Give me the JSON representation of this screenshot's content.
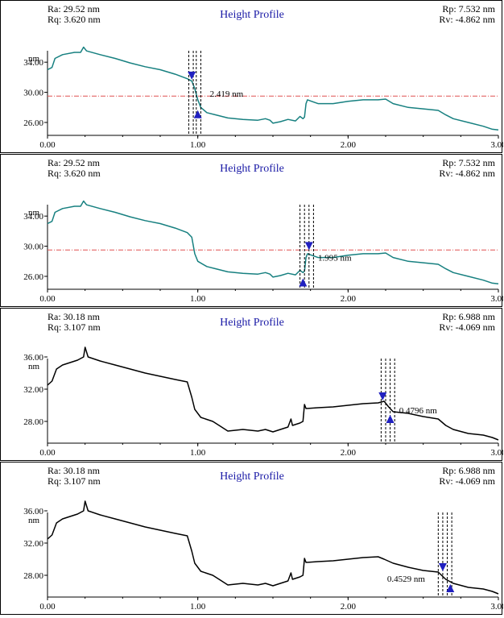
{
  "unit_label": "nm",
  "colors": {
    "teal": "#178080",
    "black": "#000000",
    "ref": "#e05050",
    "marker": "#2020c0",
    "title": "#1a1aa6"
  },
  "chart_data": [
    {
      "type": "line",
      "title": "Height Profile",
      "ylabel": "nm",
      "stats": {
        "ra": "Ra: 29.52 nm",
        "rq": "Rq: 3.620 nm",
        "rp": "Rp: 7.532 nm",
        "rv": "Rv: -4.862 nm"
      },
      "line_color": "teal",
      "xlim": [
        0,
        3
      ],
      "ylim": [
        24.5,
        36.8
      ],
      "x_ticks": [
        "0.00",
        "1.00",
        "2.00",
        "3.00"
      ],
      "y_ticks": [
        "26.00",
        "30.00",
        "34.00"
      ],
      "ref_y": 29.5,
      "cursors": [
        0.94,
        0.97,
        0.99,
        1.02
      ],
      "marker_down": [
        0.96,
        31.9
      ],
      "marker_up": [
        1.0,
        27.2
      ],
      "measurement": {
        "text": "2.419 nm",
        "x": 1.08,
        "y": 29.4
      },
      "profile": [
        [
          0,
          33
        ],
        [
          0.03,
          33.3
        ],
        [
          0.05,
          34.5
        ],
        [
          0.1,
          35
        ],
        [
          0.18,
          35.3
        ],
        [
          0.22,
          35.3
        ],
        [
          0.24,
          36
        ],
        [
          0.26,
          35.5
        ],
        [
          0.35,
          35
        ],
        [
          0.45,
          34.5
        ],
        [
          0.55,
          33.9
        ],
        [
          0.65,
          33.4
        ],
        [
          0.75,
          33
        ],
        [
          0.85,
          32.4
        ],
        [
          0.93,
          31.8
        ],
        [
          0.96,
          31.5
        ],
        [
          0.98,
          30.5
        ],
        [
          1.0,
          29
        ],
        [
          1.02,
          28
        ],
        [
          1.06,
          27.3
        ],
        [
          1.12,
          27
        ],
        [
          1.2,
          26.6
        ],
        [
          1.3,
          26.4
        ],
        [
          1.4,
          26.3
        ],
        [
          1.45,
          26.5
        ],
        [
          1.48,
          26.3
        ],
        [
          1.5,
          25.9
        ],
        [
          1.55,
          26.1
        ],
        [
          1.6,
          26.4
        ],
        [
          1.65,
          26.2
        ],
        [
          1.68,
          26.8
        ],
        [
          1.7,
          26.5
        ],
        [
          1.71,
          26.7
        ],
        [
          1.72,
          28.5
        ],
        [
          1.73,
          29
        ],
        [
          1.8,
          28.5
        ],
        [
          1.9,
          28.5
        ],
        [
          2.0,
          28.8
        ],
        [
          2.1,
          29
        ],
        [
          2.2,
          29
        ],
        [
          2.25,
          29.1
        ],
        [
          2.3,
          28.5
        ],
        [
          2.4,
          28
        ],
        [
          2.5,
          27.8
        ],
        [
          2.6,
          27.6
        ],
        [
          2.65,
          27
        ],
        [
          2.7,
          26.5
        ],
        [
          2.8,
          26
        ],
        [
          2.9,
          25.5
        ],
        [
          2.96,
          25.1
        ],
        [
          3.0,
          25
        ]
      ]
    },
    {
      "type": "line",
      "title": "Height Profile",
      "ylabel": "nm",
      "stats": {
        "ra": "Ra: 29.52 nm",
        "rq": "Rq: 3.620 nm",
        "rp": "Rp: 7.532 nm",
        "rv": "Rv: -4.862 nm"
      },
      "line_color": "teal",
      "xlim": [
        0,
        3
      ],
      "ylim": [
        24.5,
        36.8
      ],
      "x_ticks": [
        "0.00",
        "1.00",
        "2.00",
        "3.00"
      ],
      "y_ticks": [
        "26.00",
        "30.00",
        "34.00"
      ],
      "ref_y": 29.5,
      "cursors": [
        1.68,
        1.71,
        1.74,
        1.77
      ],
      "marker_down": [
        1.74,
        29.7
      ],
      "marker_up": [
        1.7,
        25.3
      ],
      "measurement": {
        "text": "1.995 nm",
        "x": 1.8,
        "y": 28.1
      },
      "profile": [
        [
          0,
          33
        ],
        [
          0.03,
          33.3
        ],
        [
          0.05,
          34.5
        ],
        [
          0.1,
          35
        ],
        [
          0.18,
          35.3
        ],
        [
          0.22,
          35.3
        ],
        [
          0.24,
          36
        ],
        [
          0.26,
          35.5
        ],
        [
          0.35,
          35
        ],
        [
          0.45,
          34.5
        ],
        [
          0.55,
          33.9
        ],
        [
          0.65,
          33.4
        ],
        [
          0.75,
          33
        ],
        [
          0.85,
          32.4
        ],
        [
          0.93,
          31.8
        ],
        [
          0.96,
          31.2
        ],
        [
          0.98,
          29
        ],
        [
          1.0,
          28
        ],
        [
          1.06,
          27.3
        ],
        [
          1.12,
          27
        ],
        [
          1.2,
          26.6
        ],
        [
          1.3,
          26.4
        ],
        [
          1.4,
          26.3
        ],
        [
          1.45,
          26.5
        ],
        [
          1.48,
          26.3
        ],
        [
          1.5,
          25.9
        ],
        [
          1.55,
          26.1
        ],
        [
          1.6,
          26.4
        ],
        [
          1.65,
          26.2
        ],
        [
          1.68,
          26.8
        ],
        [
          1.7,
          26.5
        ],
        [
          1.71,
          26.7
        ],
        [
          1.72,
          28.5
        ],
        [
          1.73,
          29
        ],
        [
          1.8,
          28.5
        ],
        [
          1.9,
          28.5
        ],
        [
          2.0,
          28.8
        ],
        [
          2.1,
          29
        ],
        [
          2.2,
          29
        ],
        [
          2.25,
          29.1
        ],
        [
          2.3,
          28.5
        ],
        [
          2.4,
          28
        ],
        [
          2.5,
          27.8
        ],
        [
          2.6,
          27.6
        ],
        [
          2.65,
          27
        ],
        [
          2.7,
          26.5
        ],
        [
          2.8,
          26
        ],
        [
          2.9,
          25.5
        ],
        [
          2.96,
          25.1
        ],
        [
          3.0,
          25
        ]
      ]
    },
    {
      "type": "line",
      "title": "Height Profile",
      "ylabel": "nm",
      "stats": {
        "ra": "Ra: 30.18 nm",
        "rq": "Rq: 3.107 nm",
        "rp": "Rp: 6.988 nm",
        "rv": "Rv: -4.069 nm"
      },
      "line_color": "black",
      "xlim": [
        0,
        3
      ],
      "ylim": [
        25.5,
        37.0
      ],
      "x_ticks": [
        "0.00",
        "1.00",
        "2.00",
        "3.00"
      ],
      "y_ticks": [
        "28.00",
        "32.00",
        "36.00"
      ],
      "ref_y": null,
      "cursors": [
        2.22,
        2.25,
        2.28,
        2.31
      ],
      "marker_down": [
        2.23,
        30.8
      ],
      "marker_up": [
        2.28,
        28.4
      ],
      "measurement": {
        "text": "0.4796 nm",
        "x": 2.34,
        "y": 29.0
      },
      "profile": [
        [
          0,
          32.5
        ],
        [
          0.03,
          33
        ],
        [
          0.06,
          34.5
        ],
        [
          0.1,
          35
        ],
        [
          0.2,
          35.6
        ],
        [
          0.24,
          36
        ],
        [
          0.25,
          37.2
        ],
        [
          0.27,
          36
        ],
        [
          0.35,
          35.5
        ],
        [
          0.45,
          35
        ],
        [
          0.55,
          34.5
        ],
        [
          0.65,
          34
        ],
        [
          0.75,
          33.6
        ],
        [
          0.85,
          33.2
        ],
        [
          0.93,
          32.9
        ],
        [
          0.96,
          31
        ],
        [
          0.98,
          29.5
        ],
        [
          1.02,
          28.5
        ],
        [
          1.1,
          28
        ],
        [
          1.15,
          27.4
        ],
        [
          1.2,
          26.8
        ],
        [
          1.3,
          27
        ],
        [
          1.4,
          26.8
        ],
        [
          1.45,
          27
        ],
        [
          1.5,
          26.7
        ],
        [
          1.55,
          27
        ],
        [
          1.6,
          27.3
        ],
        [
          1.62,
          28.3
        ],
        [
          1.63,
          27.5
        ],
        [
          1.68,
          27.8
        ],
        [
          1.7,
          28
        ],
        [
          1.71,
          30.1
        ],
        [
          1.72,
          29.6
        ],
        [
          1.8,
          29.7
        ],
        [
          1.9,
          29.8
        ],
        [
          2.0,
          30
        ],
        [
          2.1,
          30.2
        ],
        [
          2.2,
          30.3
        ],
        [
          2.24,
          30.5
        ],
        [
          2.27,
          29.8
        ],
        [
          2.3,
          29.2
        ],
        [
          2.4,
          29
        ],
        [
          2.5,
          28.6
        ],
        [
          2.6,
          28.3
        ],
        [
          2.65,
          27.5
        ],
        [
          2.7,
          27
        ],
        [
          2.8,
          26.5
        ],
        [
          2.9,
          26.3
        ],
        [
          2.96,
          26
        ],
        [
          3.0,
          25.7
        ]
      ]
    },
    {
      "type": "line",
      "title": "Height Profile",
      "ylabel": "nm",
      "stats": {
        "ra": "Ra: 30.18 nm",
        "rq": "Rq: 3.107 nm",
        "rp": "Rp: 6.988 nm",
        "rv": "Rv: -4.069 nm"
      },
      "line_color": "black",
      "xlim": [
        0,
        3
      ],
      "ylim": [
        25.5,
        37.0
      ],
      "x_ticks": [
        "0.00",
        "1.00",
        "2.00",
        "3.00"
      ],
      "y_ticks": [
        "28.00",
        "32.00",
        "36.00"
      ],
      "ref_y": null,
      "cursors": [
        2.6,
        2.63,
        2.66,
        2.69
      ],
      "marker_down": [
        2.63,
        28.7
      ],
      "marker_up": [
        2.68,
        26.5
      ],
      "measurement": {
        "text": "0.4529 nm",
        "x": 2.26,
        "y": 27.2
      },
      "profile": [
        [
          0,
          32.5
        ],
        [
          0.03,
          33
        ],
        [
          0.06,
          34.5
        ],
        [
          0.1,
          35
        ],
        [
          0.2,
          35.6
        ],
        [
          0.24,
          36
        ],
        [
          0.25,
          37.2
        ],
        [
          0.27,
          36
        ],
        [
          0.35,
          35.5
        ],
        [
          0.45,
          35
        ],
        [
          0.55,
          34.5
        ],
        [
          0.65,
          34
        ],
        [
          0.75,
          33.6
        ],
        [
          0.85,
          33.2
        ],
        [
          0.93,
          32.9
        ],
        [
          0.96,
          31
        ],
        [
          0.98,
          29.5
        ],
        [
          1.02,
          28.5
        ],
        [
          1.1,
          28
        ],
        [
          1.15,
          27.4
        ],
        [
          1.2,
          26.8
        ],
        [
          1.3,
          27
        ],
        [
          1.4,
          26.8
        ],
        [
          1.45,
          27
        ],
        [
          1.5,
          26.7
        ],
        [
          1.55,
          27
        ],
        [
          1.6,
          27.3
        ],
        [
          1.62,
          28.3
        ],
        [
          1.63,
          27.5
        ],
        [
          1.68,
          27.8
        ],
        [
          1.7,
          28
        ],
        [
          1.71,
          30.1
        ],
        [
          1.72,
          29.6
        ],
        [
          1.8,
          29.7
        ],
        [
          1.9,
          29.8
        ],
        [
          2.0,
          30
        ],
        [
          2.1,
          30.2
        ],
        [
          2.2,
          30.3
        ],
        [
          2.24,
          30
        ],
        [
          2.3,
          29.5
        ],
        [
          2.4,
          29
        ],
        [
          2.5,
          28.6
        ],
        [
          2.6,
          28.4
        ],
        [
          2.65,
          27.5
        ],
        [
          2.7,
          27
        ],
        [
          2.8,
          26.5
        ],
        [
          2.9,
          26.3
        ],
        [
          2.96,
          26
        ],
        [
          3.0,
          25.7
        ]
      ]
    }
  ]
}
